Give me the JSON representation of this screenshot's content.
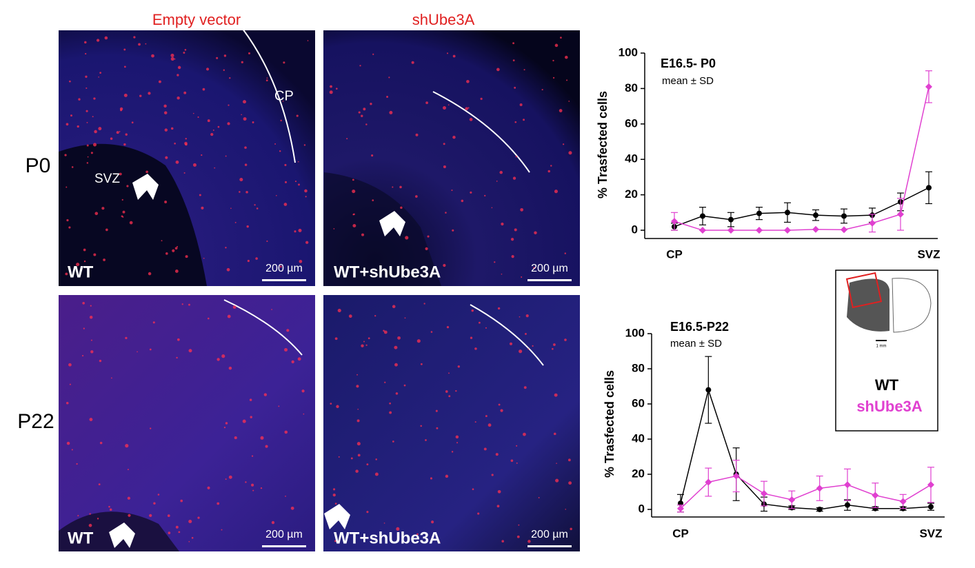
{
  "panels": {
    "columns": [
      "Empty vector",
      "shUbe3A"
    ],
    "rows": [
      "P0",
      "P22"
    ],
    "wt": "WT",
    "wt_sh": "WT+shUbe3A",
    "svz": "SVZ",
    "cp": "CP",
    "scale_bar": "200 µm",
    "inset_scale": "1 mm"
  },
  "chart_data": [
    {
      "type": "line",
      "title": "E16.5- P0",
      "subtitle": "mean ± SD",
      "y_label": "% Trasfected cells",
      "categories": [
        "CP",
        null,
        null,
        null,
        null,
        null,
        null,
        null,
        null,
        "SVZ"
      ],
      "ylim": [
        0,
        100
      ],
      "yticks": [
        0,
        20,
        40,
        60,
        80,
        100
      ],
      "series": [
        {
          "name": "WT",
          "color": "#000000",
          "marker": "circle",
          "values": [
            2,
            8,
            6,
            9.5,
            10,
            8.5,
            8,
            8.5,
            16,
            24
          ],
          "errors": [
            2,
            5,
            4,
            3.5,
            5.5,
            3,
            4,
            4,
            5,
            9
          ]
        },
        {
          "name": "shUbe3A",
          "color": "#e040d0",
          "marker": "diamond",
          "values": [
            5,
            0,
            0,
            0,
            0,
            0.5,
            0.3,
            4,
            9,
            81
          ],
          "errors": [
            5,
            0,
            0,
            0,
            0,
            0,
            0,
            5,
            9,
            9
          ]
        }
      ]
    },
    {
      "type": "line",
      "title": "E16.5-P22",
      "subtitle": "mean ± SD",
      "y_label": "% Trasfected cells",
      "categories": [
        "CP",
        null,
        null,
        null,
        null,
        null,
        null,
        null,
        null,
        "SVZ"
      ],
      "ylim": [
        0,
        100
      ],
      "yticks": [
        0,
        20,
        40,
        60,
        80,
        100
      ],
      "series": [
        {
          "name": "WT",
          "color": "#000000",
          "marker": "circle",
          "values": [
            3.5,
            68,
            20,
            3,
            1,
            0,
            2.5,
            0.5,
            0.5,
            1.5
          ],
          "errors": [
            5,
            19,
            15,
            4,
            1,
            1,
            3,
            1,
            1,
            2
          ]
        },
        {
          "name": "shUbe3A",
          "color": "#e040d0",
          "marker": "diamond",
          "values": [
            0.5,
            15.5,
            19,
            9,
            5.5,
            12,
            14,
            8,
            4.5,
            14
          ],
          "errors": [
            2,
            8,
            9,
            7,
            5,
            7,
            9,
            7,
            4,
            10
          ]
        }
      ]
    }
  ]
}
